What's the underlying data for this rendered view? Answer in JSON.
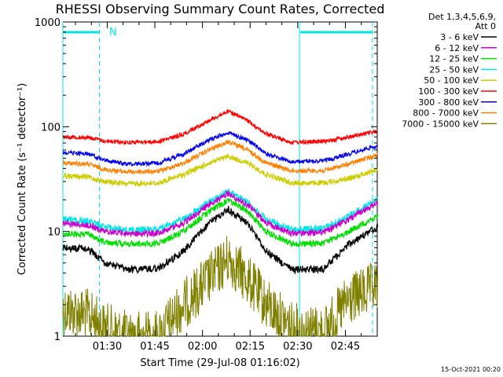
{
  "chart_data": {
    "type": "line",
    "title": "RHESSI Observing Summary Count Rates, Corrected",
    "xlabel": "Start Time (29-Jul-08 01:16:02)",
    "ylabel": "Corrected Count Rate (s⁻¹ detector⁻¹)",
    "y_scale": "log",
    "ylim": [
      1,
      1000
    ],
    "xlim_minutes": [
      0,
      99
    ],
    "x_ticks": [
      "01:30",
      "01:45",
      "02:00",
      "02:15",
      "02:30",
      "02:45"
    ],
    "y_ticks": [
      "1",
      "10",
      "100",
      "1000"
    ],
    "legend_header": [
      "Det 1,3,4,5,6,9,",
      "Att 0"
    ],
    "legend_position": "top-right, outside plot",
    "annotation": "N",
    "footer_stamp": "15-Oct-2021 00:20",
    "series": [
      {
        "name": "3 - 6 keV",
        "color": "#000000",
        "x_min": [
          0,
          8,
          13,
          20,
          30,
          38,
          46,
          52,
          58,
          64,
          72,
          82,
          90,
          99
        ],
        "values": [
          7,
          6.8,
          5,
          4.3,
          4.4,
          6.5,
          12,
          16,
          12,
          6.5,
          4.3,
          4.4,
          7.5,
          11
        ]
      },
      {
        "name": "6 - 12 keV",
        "color": "#cc00cc",
        "x_min": [
          0,
          8,
          13,
          20,
          30,
          38,
          46,
          52,
          58,
          64,
          72,
          82,
          90,
          99
        ],
        "values": [
          12,
          11.5,
          10,
          9.5,
          9.6,
          12,
          18,
          23,
          18,
          12,
          9.6,
          9.8,
          13,
          19
        ]
      },
      {
        "name": "12 - 25 keV",
        "color": "#00dd00",
        "x_min": [
          0,
          8,
          13,
          20,
          30,
          38,
          46,
          52,
          58,
          64,
          72,
          82,
          90,
          99
        ],
        "values": [
          9.5,
          9.3,
          8,
          7.6,
          7.7,
          10,
          15.5,
          20,
          15.5,
          10,
          7.6,
          7.7,
          10,
          14
        ]
      },
      {
        "name": "25 - 50 keV",
        "color": "#00e5e5",
        "x_min": [
          0,
          8,
          13,
          20,
          30,
          38,
          46,
          52,
          58,
          64,
          72,
          82,
          90,
          99
        ],
        "values": [
          13,
          12.5,
          11,
          10.3,
          10.4,
          13,
          19,
          24,
          19,
          13,
          10.4,
          10.6,
          14,
          20
        ]
      },
      {
        "name": "50 - 100 keV",
        "color": "#cccc00",
        "x_min": [
          0,
          8,
          13,
          20,
          30,
          38,
          46,
          52,
          58,
          64,
          72,
          82,
          90,
          99
        ],
        "values": [
          34,
          33,
          30,
          28.5,
          29,
          35,
          45,
          52,
          45,
          35,
          29,
          29,
          32,
          39
        ]
      },
      {
        "name": "100 - 300 keV",
        "color": "#ff0000",
        "x_min": [
          0,
          8,
          13,
          20,
          30,
          38,
          46,
          52,
          58,
          64,
          72,
          82,
          90,
          99
        ],
        "values": [
          80,
          79,
          73,
          71,
          72,
          85,
          115,
          140,
          115,
          85,
          71,
          72,
          80,
          90
        ]
      },
      {
        "name": "300 - 800 keV",
        "color": "#0000ee",
        "x_min": [
          0,
          8,
          13,
          20,
          30,
          38,
          46,
          52,
          58,
          64,
          72,
          82,
          90,
          99
        ],
        "values": [
          57,
          55,
          48,
          44,
          45,
          55,
          75,
          88,
          75,
          55,
          46,
          47,
          55,
          66
        ]
      },
      {
        "name": "800 - 7000 keV",
        "color": "#ff8000",
        "x_min": [
          0,
          8,
          13,
          20,
          30,
          38,
          46,
          52,
          58,
          64,
          72,
          82,
          90,
          99
        ],
        "values": [
          45,
          44,
          39,
          37,
          37.5,
          45,
          60,
          72,
          60,
          45,
          38,
          38,
          44,
          54
        ]
      },
      {
        "name": "7000 - 15000 keV",
        "color": "#808000",
        "x_min": [
          0,
          8,
          13,
          20,
          30,
          38,
          46,
          52,
          58,
          64,
          72,
          82,
          90,
          99
        ],
        "values": [
          1.8,
          1.6,
          1.2,
          1,
          1,
          2,
          3.5,
          5.5,
          3.5,
          2,
          1.2,
          1.1,
          2.2,
          3
        ]
      }
    ],
    "markers": {
      "color": "#00e5e5",
      "solid_lines_x_min": [
        0,
        74.5
      ],
      "dashed_lines_x_min": [
        11.5,
        97.5
      ],
      "top_bars_x_min": [
        [
          0,
          11.5
        ],
        [
          74.5,
          97.5
        ]
      ]
    }
  }
}
